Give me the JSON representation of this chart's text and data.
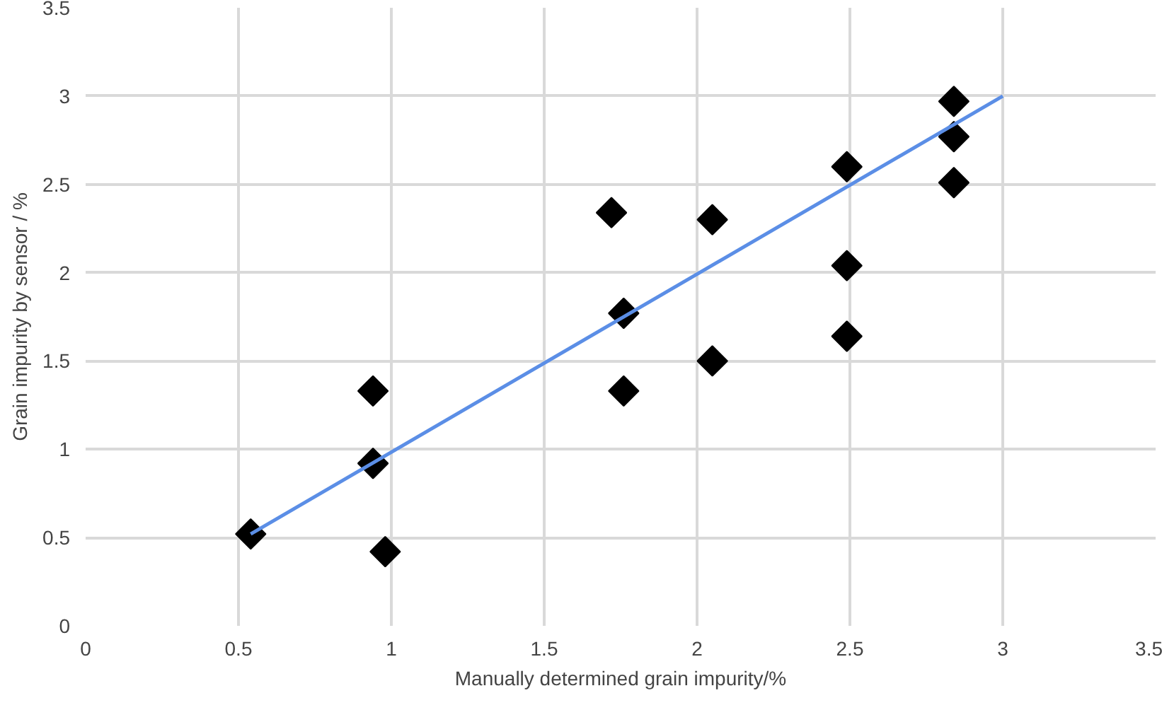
{
  "chart_data": {
    "type": "scatter",
    "xlabel": "Manually determined grain impurity/%",
    "ylabel": "Grain impurity by sensor / %",
    "xlim": [
      0,
      3.5
    ],
    "ylim": [
      0,
      3.5
    ],
    "xticks": [
      0,
      0.5,
      1,
      1.5,
      2,
      2.5,
      3,
      3.5
    ],
    "yticks": [
      0,
      0.5,
      1,
      1.5,
      2,
      2.5,
      3,
      3.5
    ],
    "grid": true,
    "marker": "diamond",
    "series": [
      {
        "color": "#000000",
        "x": [
          0.54,
          0.94,
          0.94,
          0.98,
          1.72,
          1.76,
          1.76,
          2.05,
          2.05,
          2.49,
          2.49,
          2.49,
          2.84,
          2.84,
          2.84
        ],
        "values": [
          0.52,
          0.92,
          1.33,
          0.42,
          2.34,
          1.77,
          1.33,
          2.3,
          1.5,
          2.6,
          2.04,
          1.64,
          2.97,
          2.77,
          2.51
        ]
      },
      {
        "type": "line",
        "marker": "none",
        "color": "#5b8ee6",
        "x": [
          0.54,
          3.0
        ],
        "values": [
          0.52,
          3.0
        ]
      }
    ]
  }
}
